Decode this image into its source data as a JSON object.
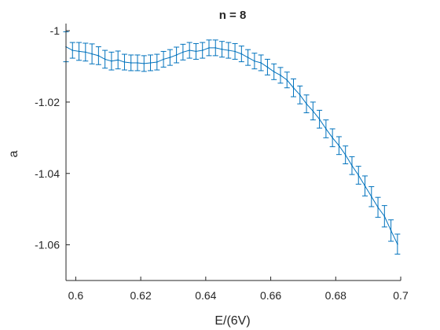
{
  "chart_data": {
    "type": "line",
    "title": "n = 8",
    "xlabel": "E/(6V)",
    "ylabel": "a",
    "xlim": [
      0.597,
      0.7
    ],
    "ylim": [
      -1.07,
      -0.998
    ],
    "xticks": [
      0.6,
      0.62,
      0.64,
      0.66,
      0.68,
      0.7
    ],
    "xtick_labels": [
      "0.6",
      "0.62",
      "0.64",
      "0.66",
      "0.68",
      "0.7"
    ],
    "yticks": [
      -1.0,
      -1.02,
      -1.04,
      -1.06
    ],
    "ytick_labels": [
      "-1",
      "-1.02",
      "-1.04",
      "-1.06"
    ],
    "grid": false,
    "legend": false,
    "error_bars": true,
    "color": "#0072BD",
    "series": [
      {
        "x": [
          0.597,
          0.599,
          0.601,
          0.603,
          0.605,
          0.607,
          0.609,
          0.611,
          0.613,
          0.615,
          0.617,
          0.619,
          0.621,
          0.623,
          0.625,
          0.627,
          0.629,
          0.631,
          0.633,
          0.635,
          0.637,
          0.639,
          0.641,
          0.643,
          0.645,
          0.647,
          0.649,
          0.651,
          0.653,
          0.655,
          0.657,
          0.659,
          0.661,
          0.663,
          0.665,
          0.667,
          0.669,
          0.671,
          0.673,
          0.675,
          0.677,
          0.679,
          0.681,
          0.683,
          0.685,
          0.687,
          0.689,
          0.691,
          0.693,
          0.695,
          0.697,
          0.699
        ],
        "y": [
          -1.0045,
          -1.0055,
          -1.0058,
          -1.006,
          -1.0065,
          -1.007,
          -1.008,
          -1.0085,
          -1.0082,
          -1.0088,
          -1.009,
          -1.009,
          -1.0092,
          -1.009,
          -1.0088,
          -1.008,
          -1.0075,
          -1.0068,
          -1.006,
          -1.0055,
          -1.0058,
          -1.0055,
          -1.0048,
          -1.0048,
          -1.0052,
          -1.0055,
          -1.0058,
          -1.0065,
          -1.0075,
          -1.0085,
          -1.009,
          -1.0102,
          -1.0115,
          -1.0125,
          -1.0138,
          -1.016,
          -1.018,
          -1.0205,
          -1.0225,
          -1.0248,
          -1.0275,
          -1.03,
          -1.0322,
          -1.0348,
          -1.0378,
          -1.0405,
          -1.0435,
          -1.0465,
          -1.0495,
          -1.052,
          -1.056,
          -1.0598
        ],
        "err": [
          0.0042,
          0.0022,
          0.0025,
          0.0025,
          0.0028,
          0.0025,
          0.0025,
          0.0025,
          0.0025,
          0.0022,
          0.0022,
          0.0022,
          0.0022,
          0.0022,
          0.0022,
          0.0022,
          0.0022,
          0.0022,
          0.0022,
          0.0022,
          0.0022,
          0.0022,
          0.0022,
          0.0022,
          0.0022,
          0.0022,
          0.0022,
          0.0022,
          0.0022,
          0.0022,
          0.0022,
          0.0022,
          0.0022,
          0.0022,
          0.0022,
          0.0025,
          0.0025,
          0.0025,
          0.0025,
          0.0025,
          0.0025,
          0.0025,
          0.0025,
          0.0025,
          0.0025,
          0.0025,
          0.0028,
          0.0028,
          0.0028,
          0.003,
          0.003,
          0.0028
        ]
      }
    ]
  }
}
